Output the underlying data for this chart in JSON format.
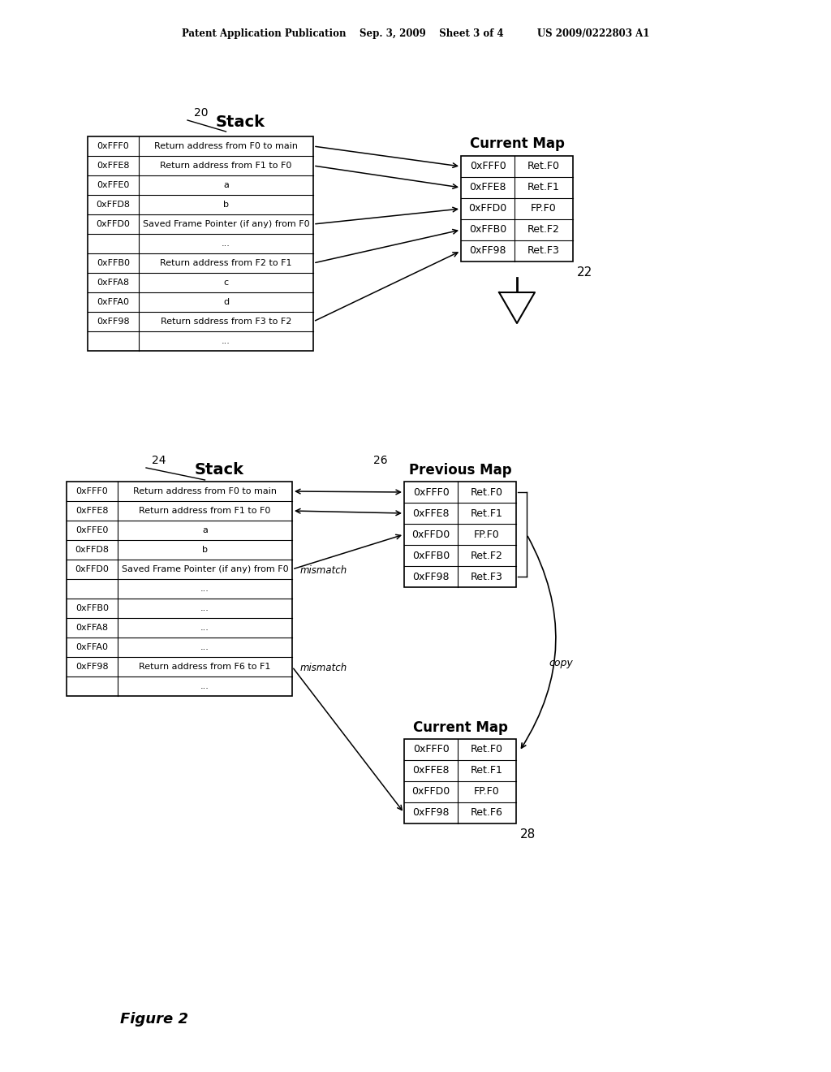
{
  "bg": "#ffffff",
  "header": "Patent Application Publication    Sep. 3, 2009    Sheet 3 of 4          US 2009/0222803 A1",
  "top_stack_label": "20",
  "top_stack_title": "Stack",
  "top_stack_rows": [
    [
      "0xFFF0",
      "Return address from F0 to main"
    ],
    [
      "0xFFE8",
      "Return address from F1 to F0"
    ],
    [
      "0xFFE0",
      "a"
    ],
    [
      "0xFFD8",
      "b"
    ],
    [
      "0xFFD0",
      "Saved Frame Pointer (if any) from F0"
    ],
    [
      "",
      "..."
    ],
    [
      "0xFFB0",
      "Return address from F2 to F1"
    ],
    [
      "0xFFA8",
      "c"
    ],
    [
      "0xFFA0",
      "d"
    ],
    [
      "0xFF98",
      "Return sddress from F3 to F2"
    ],
    [
      "",
      "..."
    ]
  ],
  "top_stack_arrow_rows": [
    0,
    1,
    4,
    6,
    9
  ],
  "top_map_title": "Current Map",
  "top_map_label": "22",
  "top_map_rows": [
    [
      "0xFFF0",
      "Ret.F0"
    ],
    [
      "0xFFE8",
      "Ret.F1"
    ],
    [
      "0xFFD0",
      "FP.F0"
    ],
    [
      "0xFFB0",
      "Ret.F2"
    ],
    [
      "0xFF98",
      "Ret.F3"
    ]
  ],
  "bot_stack_label": "24",
  "bot_stack_title": "Stack",
  "bot_stack_rows": [
    [
      "0xFFF0",
      "Return address from F0 to main"
    ],
    [
      "0xFFE8",
      "Return address from F1 to F0"
    ],
    [
      "0xFFE0",
      "a"
    ],
    [
      "0xFFD8",
      "b"
    ],
    [
      "0xFFD0",
      "Saved Frame Pointer (if any) from F0"
    ],
    [
      "",
      "..."
    ],
    [
      "0xFFB0",
      "..."
    ],
    [
      "0xFFA8",
      "..."
    ],
    [
      "0xFFA0",
      "..."
    ],
    [
      "0xFF98",
      "Return address from F6 to F1"
    ],
    [
      "",
      "..."
    ]
  ],
  "bot_prev_title": "Previous Map",
  "bot_prev_label": "26",
  "bot_prev_rows": [
    [
      "0xFFF0",
      "Ret.F0"
    ],
    [
      "0xFFE8",
      "Ret.F1"
    ],
    [
      "0xFFD0",
      "FP.F0"
    ],
    [
      "0xFFB0",
      "Ret.F2"
    ],
    [
      "0xFF98",
      "Ret.F3"
    ]
  ],
  "bot_curr_title": "Current Map",
  "bot_curr_label": "28",
  "bot_curr_rows": [
    [
      "0xFFF0",
      "Ret.F0"
    ],
    [
      "0xFFE8",
      "Ret.F1"
    ],
    [
      "0xFFD0",
      "FP.F0"
    ],
    [
      "0xFF98",
      "Ret.F6"
    ]
  ],
  "figure_label": "Figure 2",
  "mismatch1": "mismatch",
  "mismatch2": "mismatch",
  "copy_label": "copy"
}
